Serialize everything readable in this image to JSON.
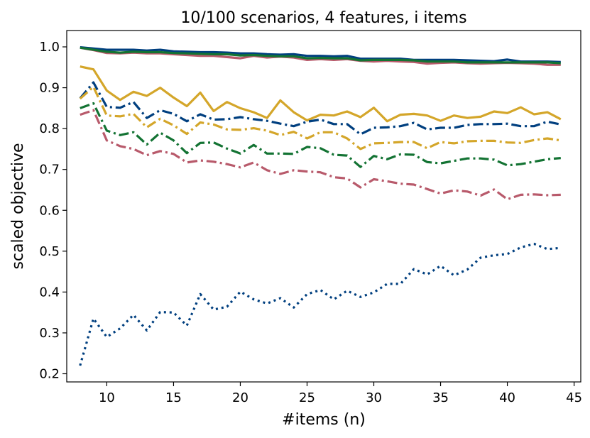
{
  "chart_data": {
    "type": "line",
    "title": "10/100 scenarios, 4 features, i items",
    "xlabel": "#items (n)",
    "ylabel": "scaled objective",
    "xlim": [
      7,
      45.5
    ],
    "ylim": [
      0.18,
      1.04
    ],
    "xticks": [
      10,
      15,
      20,
      25,
      30,
      35,
      40,
      45
    ],
    "xtick_labels": [
      "10",
      "15",
      "20",
      "25",
      "30",
      "35",
      "40",
      "45"
    ],
    "yticks": [
      0.2,
      0.3,
      0.4,
      0.5,
      0.6,
      0.7,
      0.8,
      0.9,
      1.0
    ],
    "ytick_labels": [
      "0.2",
      "0.3",
      "0.4",
      "0.5",
      "0.6",
      "0.7",
      "0.8",
      "0.9",
      "1.0"
    ],
    "grid": false,
    "legend": "none",
    "x": [
      8,
      9,
      10,
      11,
      12,
      13,
      14,
      15,
      16,
      17,
      18,
      19,
      20,
      21,
      22,
      23,
      24,
      25,
      26,
      27,
      28,
      29,
      30,
      31,
      32,
      33,
      34,
      35,
      36,
      37,
      38,
      39,
      40,
      41,
      42,
      43,
      44
    ],
    "series": [
      {
        "color": "#b85a6b",
        "style": "solid",
        "values": [
          0.998,
          0.992,
          0.985,
          0.984,
          0.986,
          0.984,
          0.984,
          0.982,
          0.98,
          0.978,
          0.978,
          0.975,
          0.972,
          0.978,
          0.974,
          0.976,
          0.974,
          0.968,
          0.97,
          0.968,
          0.97,
          0.966,
          0.964,
          0.966,
          0.964,
          0.963,
          0.959,
          0.961,
          0.962,
          0.96,
          0.959,
          0.96,
          0.961,
          0.96,
          0.959,
          0.956,
          0.956
        ]
      },
      {
        "color": "#003f7f",
        "style": "solid",
        "values": [
          0.999,
          0.996,
          0.993,
          0.993,
          0.993,
          0.991,
          0.993,
          0.989,
          0.988,
          0.987,
          0.987,
          0.986,
          0.984,
          0.984,
          0.982,
          0.981,
          0.982,
          0.978,
          0.978,
          0.977,
          0.978,
          0.971,
          0.971,
          0.971,
          0.971,
          0.968,
          0.968,
          0.968,
          0.968,
          0.967,
          0.966,
          0.965,
          0.969,
          0.964,
          0.964,
          0.964,
          0.963
        ]
      },
      {
        "color": "#137333",
        "style": "solid",
        "values": [
          0.998,
          0.993,
          0.988,
          0.986,
          0.988,
          0.987,
          0.987,
          0.985,
          0.984,
          0.983,
          0.982,
          0.982,
          0.979,
          0.98,
          0.978,
          0.977,
          0.977,
          0.972,
          0.973,
          0.972,
          0.972,
          0.967,
          0.968,
          0.968,
          0.968,
          0.967,
          0.964,
          0.964,
          0.964,
          0.962,
          0.962,
          0.962,
          0.962,
          0.962,
          0.962,
          0.962,
          0.96
        ]
      },
      {
        "color": "#d4a62a",
        "style": "solid",
        "values": [
          0.952,
          0.945,
          0.893,
          0.87,
          0.89,
          0.88,
          0.9,
          0.876,
          0.855,
          0.888,
          0.843,
          0.865,
          0.85,
          0.84,
          0.826,
          0.869,
          0.84,
          0.82,
          0.834,
          0.832,
          0.842,
          0.828,
          0.851,
          0.818,
          0.834,
          0.836,
          0.832,
          0.819,
          0.832,
          0.826,
          0.829,
          0.842,
          0.838,
          0.852,
          0.835,
          0.84,
          0.823
        ]
      },
      {
        "color": "#003f7f",
        "style": "dashdot",
        "values": [
          0.874,
          0.913,
          0.853,
          0.851,
          0.865,
          0.826,
          0.845,
          0.836,
          0.818,
          0.835,
          0.822,
          0.823,
          0.828,
          0.823,
          0.819,
          0.812,
          0.806,
          0.817,
          0.822,
          0.811,
          0.811,
          0.786,
          0.802,
          0.803,
          0.806,
          0.814,
          0.798,
          0.802,
          0.802,
          0.809,
          0.811,
          0.811,
          0.812,
          0.806,
          0.806,
          0.817,
          0.81
        ]
      },
      {
        "color": "#d4a62a",
        "style": "dashdot",
        "values": [
          0.873,
          0.902,
          0.832,
          0.83,
          0.836,
          0.803,
          0.824,
          0.808,
          0.787,
          0.815,
          0.81,
          0.798,
          0.797,
          0.801,
          0.795,
          0.784,
          0.792,
          0.776,
          0.791,
          0.791,
          0.776,
          0.75,
          0.764,
          0.765,
          0.767,
          0.767,
          0.752,
          0.767,
          0.764,
          0.769,
          0.77,
          0.77,
          0.766,
          0.765,
          0.772,
          0.776,
          0.771
        ]
      },
      {
        "color": "#137333",
        "style": "dashdot",
        "values": [
          0.85,
          0.862,
          0.795,
          0.784,
          0.791,
          0.761,
          0.79,
          0.771,
          0.74,
          0.765,
          0.766,
          0.751,
          0.739,
          0.76,
          0.739,
          0.739,
          0.738,
          0.755,
          0.752,
          0.736,
          0.734,
          0.706,
          0.733,
          0.725,
          0.737,
          0.736,
          0.718,
          0.715,
          0.721,
          0.727,
          0.727,
          0.724,
          0.71,
          0.713,
          0.719,
          0.725,
          0.728
        ]
      },
      {
        "color": "#b85a6b",
        "style": "dashdot",
        "values": [
          0.834,
          0.845,
          0.771,
          0.757,
          0.75,
          0.735,
          0.745,
          0.738,
          0.717,
          0.722,
          0.719,
          0.713,
          0.705,
          0.717,
          0.698,
          0.689,
          0.698,
          0.695,
          0.693,
          0.681,
          0.678,
          0.656,
          0.676,
          0.671,
          0.665,
          0.663,
          0.652,
          0.641,
          0.649,
          0.646,
          0.636,
          0.651,
          0.627,
          0.638,
          0.639,
          0.637,
          0.638
        ]
      },
      {
        "color": "#003f7f",
        "style": "dotted",
        "values": [
          0.22,
          0.335,
          0.29,
          0.311,
          0.344,
          0.306,
          0.351,
          0.35,
          0.318,
          0.395,
          0.357,
          0.364,
          0.401,
          0.382,
          0.372,
          0.385,
          0.362,
          0.395,
          0.405,
          0.382,
          0.403,
          0.388,
          0.399,
          0.42,
          0.42,
          0.456,
          0.443,
          0.464,
          0.441,
          0.455,
          0.484,
          0.49,
          0.493,
          0.509,
          0.518,
          0.505,
          0.508
        ]
      }
    ]
  }
}
